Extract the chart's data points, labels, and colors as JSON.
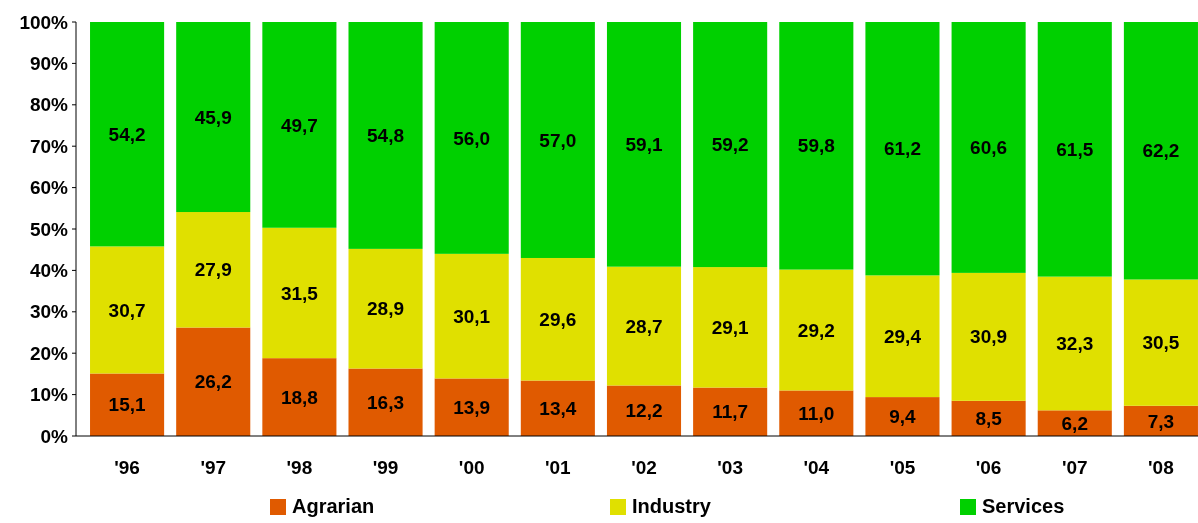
{
  "chart_data": {
    "type": "bar",
    "stacked": true,
    "categories": [
      "'96",
      "'97",
      "'98",
      "'99",
      "'00",
      "'01",
      "'02",
      "'03",
      "'04",
      "'05",
      "'06",
      "'07",
      "'08"
    ],
    "series": [
      {
        "name": "Agrarian",
        "color": "#e05a00",
        "values": [
          15.1,
          26.2,
          18.8,
          16.3,
          13.9,
          13.4,
          12.2,
          11.7,
          11.0,
          9.4,
          8.5,
          6.2,
          7.3
        ],
        "value_labels": [
          "15,1",
          "26,2",
          "18,8",
          "16,3",
          "13,9",
          "13,4",
          "12,2",
          "11,7",
          "11,0",
          "9,4",
          "8,5",
          "6,2",
          "7,3"
        ]
      },
      {
        "name": "Industry",
        "color": "#e0e000",
        "values": [
          30.7,
          27.9,
          31.5,
          28.9,
          30.1,
          29.6,
          28.7,
          29.1,
          29.2,
          29.4,
          30.9,
          32.3,
          30.5
        ],
        "value_labels": [
          "30,7",
          "27,9",
          "31,5",
          "28,9",
          "30,1",
          "29,6",
          "28,7",
          "29,1",
          "29,2",
          "29,4",
          "30,9",
          "32,3",
          "30,5"
        ]
      },
      {
        "name": "Services",
        "color": "#00d000",
        "values": [
          54.2,
          45.9,
          49.7,
          54.8,
          56.0,
          57.0,
          59.1,
          59.2,
          59.8,
          61.2,
          60.6,
          61.5,
          62.2
        ],
        "value_labels": [
          "54,2",
          "45,9",
          "49,7",
          "54,8",
          "56,0",
          "57,0",
          "59,1",
          "59,2",
          "59,8",
          "61,2",
          "60,6",
          "61,5",
          "62,2"
        ]
      }
    ],
    "ylim": [
      0,
      100
    ],
    "yticks": [
      {
        "value": 0,
        "label": "0%"
      },
      {
        "value": 10,
        "label": "10%"
      },
      {
        "value": 20,
        "label": "20%"
      },
      {
        "value": 30,
        "label": "30%"
      },
      {
        "value": 40,
        "label": "40%"
      },
      {
        "value": 50,
        "label": "50%"
      },
      {
        "value": 60,
        "label": "60%"
      },
      {
        "value": 70,
        "label": "70%"
      },
      {
        "value": 80,
        "label": "80%"
      },
      {
        "value": 90,
        "label": "90%"
      },
      {
        "value": 100,
        "label": "100%"
      }
    ],
    "legend": "bottom"
  }
}
